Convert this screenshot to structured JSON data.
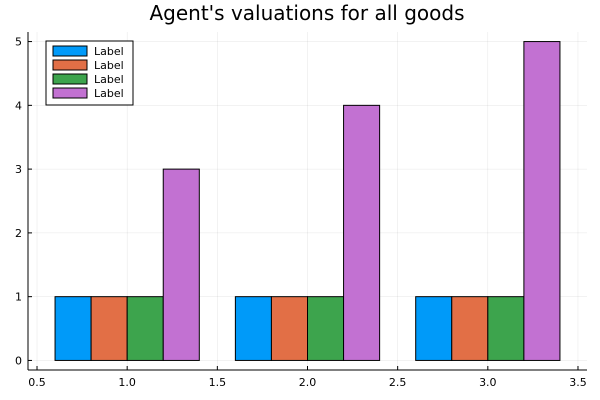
{
  "chart_data": {
    "type": "bar",
    "title": "Agent's valuations for all goods",
    "xlabel": "",
    "ylabel": "",
    "xlim": [
      0.45,
      3.55
    ],
    "ylim": [
      -0.15,
      5.15
    ],
    "xticks": [
      "0.5",
      "1.0",
      "1.5",
      "2.0",
      "2.5",
      "3.0",
      "3.5"
    ],
    "yticks": [
      "0",
      "1",
      "2",
      "3",
      "4",
      "5"
    ],
    "categories": [
      1,
      2,
      3
    ],
    "grid": true,
    "legend_position": "top-left",
    "series": [
      {
        "name": "Label",
        "color": "#009af9",
        "values": [
          1,
          1,
          1
        ]
      },
      {
        "name": "Label",
        "color": "#e26f46",
        "values": [
          1,
          1,
          1
        ]
      },
      {
        "name": "Label",
        "color": "#3da44d",
        "values": [
          1,
          1,
          1
        ]
      },
      {
        "name": "Label",
        "color": "#c271d2",
        "values": [
          3,
          4,
          5
        ]
      }
    ]
  }
}
